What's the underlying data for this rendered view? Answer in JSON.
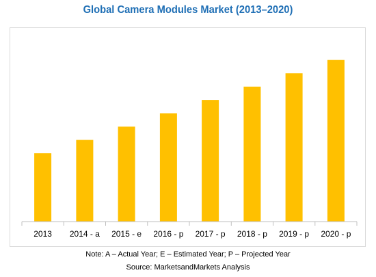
{
  "chart_data": {
    "type": "bar",
    "title": "Global Camera Modules Market (2013–2020)",
    "categories": [
      "2013",
      "2014 - a",
      "2015 - e",
      "2016 - p",
      "2017 - p",
      "2018 - p",
      "2019 - p",
      "2020 - p"
    ],
    "values": [
      41,
      49,
      57,
      65,
      73,
      81,
      89,
      97
    ],
    "ylim": [
      0,
      110
    ],
    "bar_color": "#ffc000",
    "axis_color": "#bfbfbf",
    "grid": false,
    "legend": "none"
  },
  "footer": {
    "note": "Note: A – Actual Year; E – Estimated Year; P – Projected Year",
    "source": "Source: MarketsandMarkets Analysis"
  }
}
